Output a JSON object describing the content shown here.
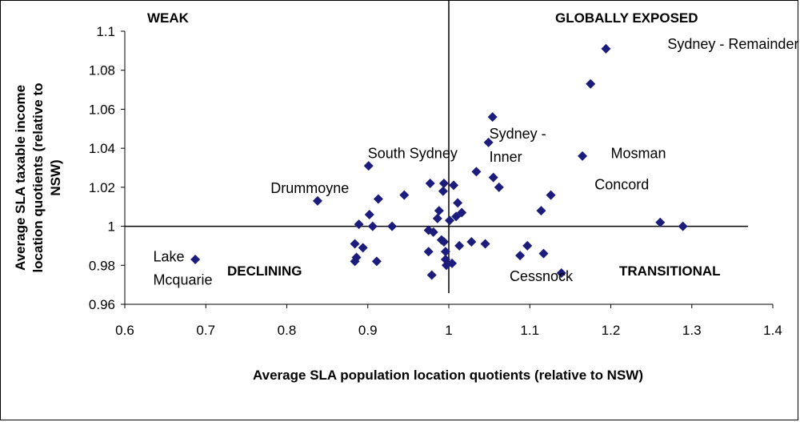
{
  "chart_data": {
    "type": "scatter",
    "title": "",
    "xlabel": "Average SLA population location quotients (relative to NSW)",
    "ylabel_lines": [
      "Average SLA taxable income",
      "location quotients (relative to",
      "NSW)"
    ],
    "xlim": [
      0.6,
      1.4
    ],
    "ylim": [
      0.96,
      1.1
    ],
    "x_ticks": [
      "0.6",
      "0.7",
      "0.8",
      "0.9",
      "1",
      "1.1",
      "1.2",
      "1.3",
      "1.4"
    ],
    "y_ticks": [
      "0.96",
      "0.98",
      "1",
      "1.02",
      "1.04",
      "1.06",
      "1.08",
      "1.1"
    ],
    "reference_lines": {
      "x": 1.0,
      "y": 1.0
    },
    "marker": {
      "shape": "diamond",
      "color": "#1c1c7c"
    },
    "grid": false,
    "legend": "none",
    "quadrant_labels": {
      "top_left": "WEAK",
      "top_right": "GLOBALLY EXPOSED",
      "bottom_left": "DECLINING",
      "bottom_right": "TRANSITIONAL"
    },
    "annotations": [
      {
        "lines": [
          "Sydney -",
          "Inner"
        ],
        "x": 1.05,
        "y": 1.045
      },
      {
        "lines": [
          "Sydney - Remainder"
        ],
        "x": 1.27,
        "y": 1.091
      },
      {
        "lines": [
          "South Sydney"
        ],
        "x": 0.9,
        "y": 1.035
      },
      {
        "lines": [
          "Drummoyne"
        ],
        "x": 0.78,
        "y": 1.017
      },
      {
        "lines": [
          "Mosman"
        ],
        "x": 1.2,
        "y": 1.035
      },
      {
        "lines": [
          "Concord"
        ],
        "x": 1.18,
        "y": 1.019
      },
      {
        "lines": [
          "Lake",
          "Mcquarie"
        ],
        "x": 0.635,
        "y": 0.982
      },
      {
        "lines": [
          "Cessnock"
        ],
        "x": 1.075,
        "y": 0.972
      }
    ],
    "points": [
      [
        0.687,
        0.983
      ],
      [
        0.838,
        1.013
      ],
      [
        0.884,
        0.991
      ],
      [
        0.884,
        0.982
      ],
      [
        0.886,
        0.984
      ],
      [
        0.889,
        1.001
      ],
      [
        0.894,
        0.989
      ],
      [
        0.901,
        1.031
      ],
      [
        0.902,
        1.006
      ],
      [
        0.906,
        1.0
      ],
      [
        0.913,
        1.014
      ],
      [
        0.911,
        0.982
      ],
      [
        0.93,
        1.0
      ],
      [
        0.945,
        1.016
      ],
      [
        0.975,
        0.998
      ],
      [
        0.975,
        0.987
      ],
      [
        0.977,
        1.022
      ],
      [
        0.979,
        0.975
      ],
      [
        0.981,
        0.997
      ],
      [
        0.986,
        1.004
      ],
      [
        0.988,
        1.008
      ],
      [
        0.991,
        0.993
      ],
      [
        0.993,
        1.018
      ],
      [
        0.994,
        1.022
      ],
      [
        0.994,
        0.992
      ],
      [
        0.996,
        0.987
      ],
      [
        0.996,
        0.983
      ],
      [
        0.997,
        0.98
      ],
      [
        1.001,
        1.003
      ],
      [
        1.004,
        0.981
      ],
      [
        1.006,
        1.021
      ],
      [
        1.009,
        1.005
      ],
      [
        1.011,
        1.012
      ],
      [
        1.013,
        0.99
      ],
      [
        1.016,
        1.007
      ],
      [
        1.028,
        0.992
      ],
      [
        1.034,
        1.028
      ],
      [
        1.045,
        0.991
      ],
      [
        1.049,
        1.043
      ],
      [
        1.054,
        1.056
      ],
      [
        1.055,
        1.025
      ],
      [
        1.062,
        1.02
      ],
      [
        1.088,
        0.985
      ],
      [
        1.097,
        0.99
      ],
      [
        1.114,
        1.008
      ],
      [
        1.117,
        0.986
      ],
      [
        1.126,
        1.016
      ],
      [
        1.139,
        0.976
      ],
      [
        1.165,
        1.036
      ],
      [
        1.175,
        1.073
      ],
      [
        1.194,
        1.091
      ],
      [
        1.261,
        1.002
      ],
      [
        1.289,
        1.0
      ]
    ]
  }
}
